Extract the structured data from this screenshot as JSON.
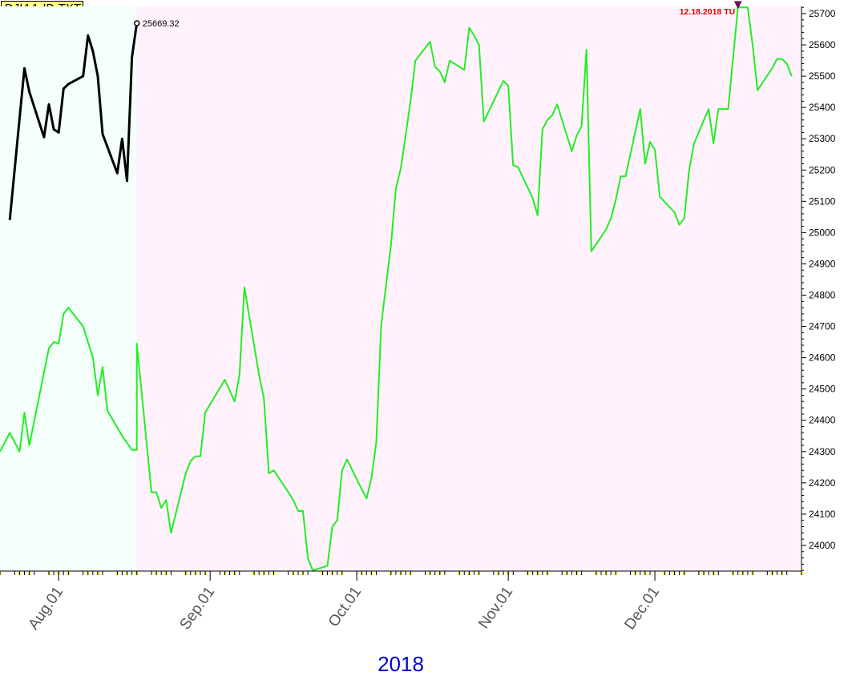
{
  "chart_data": {
    "type": "line",
    "title": "DJIAA-ID.TXT",
    "xlabel": "2018",
    "ylabel": "",
    "ylim": [
      23918,
      25723
    ],
    "y_ticks": [
      24000,
      24100,
      24200,
      24300,
      24400,
      24500,
      24600,
      24700,
      24800,
      24900,
      25000,
      25100,
      25200,
      25300,
      25400,
      25500,
      25600,
      25700
    ],
    "y_tick_labels": [
      "24000",
      "24100",
      "24200",
      "24300",
      "24400",
      "24500",
      "24600",
      "24700",
      "24800",
      "24900",
      "25000",
      "25100",
      "25200",
      "25300",
      "25400",
      "25500",
      "25600",
      "25700"
    ],
    "x_range": [
      "2018-07-20",
      "2018-12-31"
    ],
    "x_ticks": [
      {
        "date": "2018-08-01",
        "label": "Aug.01"
      },
      {
        "date": "2018-09-01",
        "label": "Sep.01"
      },
      {
        "date": "2018-10-01",
        "label": "Oct.01"
      },
      {
        "date": "2018-11-01",
        "label": "Nov.01"
      },
      {
        "date": "2018-12-01",
        "label": "Dec.01"
      }
    ],
    "regions": [
      {
        "from": "2018-07-20",
        "to": "2018-08-17",
        "color": "#f4fffc"
      },
      {
        "from": "2018-08-17",
        "to": "2018-12-31",
        "color": "#fff2fc"
      }
    ],
    "series": [
      {
        "color": "#22ee22",
        "points": [
          [
            "2018-07-20",
            24300
          ],
          [
            "2018-07-22",
            24360
          ],
          [
            "2018-07-24",
            24300
          ],
          [
            "2018-07-25",
            24425
          ],
          [
            "2018-07-26",
            24320
          ],
          [
            "2018-07-30",
            24630
          ],
          [
            "2018-07-31",
            24650
          ],
          [
            "2018-08-01",
            24645
          ],
          [
            "2018-08-02",
            24740
          ],
          [
            "2018-08-03",
            24760
          ],
          [
            "2018-08-06",
            24700
          ],
          [
            "2018-08-07",
            24650
          ],
          [
            "2018-08-08",
            24600
          ],
          [
            "2018-08-09",
            24480
          ],
          [
            "2018-08-10",
            24570
          ],
          [
            "2018-08-11",
            24430
          ],
          [
            "2018-08-14",
            24350
          ],
          [
            "2018-08-16",
            24305
          ],
          [
            "2018-08-17",
            24305
          ],
          [
            "2018-08-17",
            24645
          ],
          [
            "2018-08-20",
            24170
          ],
          [
            "2018-08-21",
            24170
          ],
          [
            "2018-08-22",
            24120
          ],
          [
            "2018-08-23",
            24145
          ],
          [
            "2018-08-24",
            24040
          ],
          [
            "2018-08-27",
            24230
          ],
          [
            "2018-08-28",
            24270
          ],
          [
            "2018-08-29",
            24285
          ],
          [
            "2018-08-30",
            24285
          ],
          [
            "2018-08-31",
            24425
          ],
          [
            "2018-09-04",
            24530
          ],
          [
            "2018-09-06",
            24460
          ],
          [
            "2018-09-07",
            24545
          ],
          [
            "2018-09-08",
            24825
          ],
          [
            "2018-09-11",
            24545
          ],
          [
            "2018-09-12",
            24470
          ],
          [
            "2018-09-13",
            24230
          ],
          [
            "2018-09-14",
            24240
          ],
          [
            "2018-09-17",
            24170
          ],
          [
            "2018-09-18",
            24145
          ],
          [
            "2018-09-19",
            24110
          ],
          [
            "2018-09-20",
            24110
          ],
          [
            "2018-09-21",
            23960
          ],
          [
            "2018-09-22",
            23920
          ],
          [
            "2018-09-25",
            23935
          ],
          [
            "2018-09-26",
            24060
          ],
          [
            "2018-09-27",
            24080
          ],
          [
            "2018-09-28",
            24240
          ],
          [
            "2018-09-29",
            24275
          ],
          [
            "2018-10-02",
            24180
          ],
          [
            "2018-10-03",
            24150
          ],
          [
            "2018-10-04",
            24215
          ],
          [
            "2018-10-05",
            24330
          ],
          [
            "2018-10-06",
            24705
          ],
          [
            "2018-10-08",
            24960
          ],
          [
            "2018-10-09",
            25140
          ],
          [
            "2018-10-10",
            25205
          ],
          [
            "2018-10-11",
            25310
          ],
          [
            "2018-10-12",
            25420
          ],
          [
            "2018-10-13",
            25550
          ],
          [
            "2018-10-16",
            25610
          ],
          [
            "2018-10-17",
            25530
          ],
          [
            "2018-10-18",
            25515
          ],
          [
            "2018-10-19",
            25480
          ],
          [
            "2018-10-20",
            25550
          ],
          [
            "2018-10-23",
            25520
          ],
          [
            "2018-10-24",
            25655
          ],
          [
            "2018-10-25",
            25630
          ],
          [
            "2018-10-26",
            25600
          ],
          [
            "2018-10-27",
            25355
          ],
          [
            "2018-10-31",
            25485
          ],
          [
            "2018-11-01",
            25470
          ],
          [
            "2018-11-02",
            25215
          ],
          [
            "2018-11-03",
            25210
          ],
          [
            "2018-11-06",
            25110
          ],
          [
            "2018-11-07",
            25055
          ],
          [
            "2018-11-08",
            25330
          ],
          [
            "2018-11-09",
            25360
          ],
          [
            "2018-11-10",
            25375
          ],
          [
            "2018-11-11",
            25410
          ],
          [
            "2018-11-14",
            25260
          ],
          [
            "2018-11-15",
            25310
          ],
          [
            "2018-11-16",
            25340
          ],
          [
            "2018-11-17",
            25585
          ],
          [
            "2018-11-18",
            24940
          ],
          [
            "2018-11-21",
            25010
          ],
          [
            "2018-11-22",
            25045
          ],
          [
            "2018-11-23",
            25105
          ],
          [
            "2018-11-24",
            25180
          ],
          [
            "2018-11-25",
            25180
          ],
          [
            "2018-11-28",
            25395
          ],
          [
            "2018-11-29",
            25220
          ],
          [
            "2018-11-30",
            25290
          ],
          [
            "2018-12-01",
            25265
          ],
          [
            "2018-12-02",
            25115
          ],
          [
            "2018-12-05",
            25065
          ],
          [
            "2018-12-06",
            25025
          ],
          [
            "2018-12-07",
            25045
          ],
          [
            "2018-12-08",
            25200
          ],
          [
            "2018-12-09",
            25285
          ],
          [
            "2018-12-12",
            25395
          ],
          [
            "2018-12-13",
            25285
          ],
          [
            "2018-12-14",
            25395
          ],
          [
            "2018-12-15",
            25395
          ],
          [
            "2018-12-16",
            25395
          ],
          [
            "2018-12-18",
            25720
          ],
          [
            "2018-12-19",
            25720
          ],
          [
            "2018-12-20",
            25720
          ],
          [
            "2018-12-21",
            25600
          ],
          [
            "2018-12-22",
            25455
          ],
          [
            "2018-12-25",
            25525
          ],
          [
            "2018-12-26",
            25555
          ],
          [
            "2018-12-27",
            25555
          ],
          [
            "2018-12-28",
            25540
          ],
          [
            "2018-12-29",
            25500
          ]
        ]
      },
      {
        "color": "#000000",
        "points": [
          [
            "2018-07-22",
            25040
          ],
          [
            "2018-07-24",
            25365
          ],
          [
            "2018-07-25",
            25525
          ],
          [
            "2018-07-26",
            25450
          ],
          [
            "2018-07-29",
            25305
          ],
          [
            "2018-07-30",
            25410
          ],
          [
            "2018-07-31",
            25330
          ],
          [
            "2018-08-01",
            25320
          ],
          [
            "2018-08-02",
            25460
          ],
          [
            "2018-08-03",
            25475
          ],
          [
            "2018-08-06",
            25500
          ],
          [
            "2018-08-07",
            25630
          ],
          [
            "2018-08-08",
            25580
          ],
          [
            "2018-08-09",
            25500
          ],
          [
            "2018-08-10",
            25315
          ],
          [
            "2018-08-13",
            25190
          ],
          [
            "2018-08-14",
            25300
          ],
          [
            "2018-08-15",
            25165
          ],
          [
            "2018-08-16",
            25560
          ],
          [
            "2018-08-17",
            25669.32
          ]
        ]
      }
    ],
    "annotations": [
      {
        "text": "25669.32",
        "date": "2018-08-17",
        "value": 25669.32,
        "color": "#000000"
      },
      {
        "text": "12.18.2018 TU",
        "date": "2018-12-18",
        "value": 25720,
        "color": "#dd0000"
      }
    ]
  }
}
